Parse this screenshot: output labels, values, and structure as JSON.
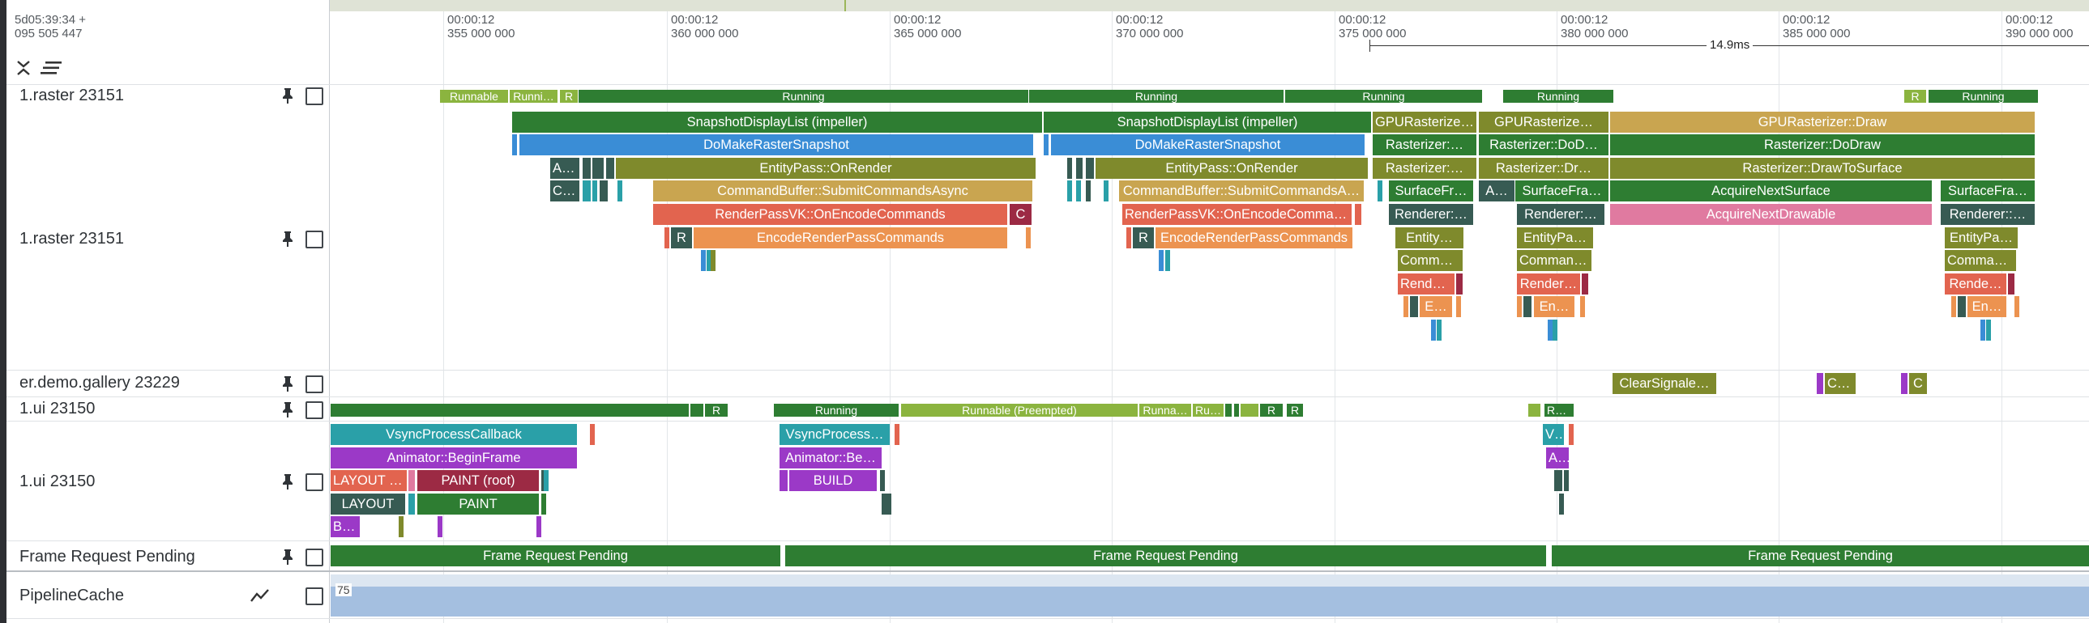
{
  "timeline": {
    "offset": "5d05:39:34 +\n095 505 447",
    "ticks": [
      {
        "time": "00:00:12",
        "ns": "355 000 000"
      },
      {
        "time": "00:00:12",
        "ns": "360 000 000"
      },
      {
        "time": "00:00:12",
        "ns": "365 000 000"
      },
      {
        "time": "00:00:12",
        "ns": "370 000 000"
      },
      {
        "time": "00:00:12",
        "ns": "375 000 000"
      },
      {
        "time": "00:00:12",
        "ns": "380 000 000"
      },
      {
        "time": "00:00:12",
        "ns": "385 000 000"
      },
      {
        "time": "00:00:12",
        "ns": "390 000 000"
      }
    ],
    "measurement": "14.9ms"
  },
  "tracks": [
    {
      "label": "1.raster 23151",
      "type": "thread-state"
    },
    {
      "label": "1.raster 23151",
      "type": "slices"
    },
    {
      "label": "er.demo.gallery 23229",
      "type": "slices"
    },
    {
      "label": "1.ui 23150",
      "type": "thread-state"
    },
    {
      "label": "1.ui 23150",
      "type": "slices"
    },
    {
      "label": "Frame Request Pending",
      "type": "slices"
    },
    {
      "label": "PipelineCache",
      "type": "counter"
    }
  ],
  "counter": {
    "max_label": "75"
  },
  "colors": {
    "running": "#2e7d32",
    "runnable": "#8bb43f",
    "teal": "#2aa0a8",
    "blue": "#3a8dd6",
    "olive": "#7f8a2c",
    "gold": "#c9a550",
    "red": "#e2644f",
    "orange": "#ec9350",
    "pink": "#e07aa0",
    "purple": "#9b39c7",
    "maroon": "#9c2a44",
    "dark": "#375b53"
  },
  "labels": {
    "runnable": "Runnable",
    "running": "Running",
    "runni": "Runni…",
    "r": "R",
    "ru": "Ru…",
    "runna": "Runna…",
    "runnable_preempted": "Runnable (Preempted)",
    "snapshot": "SnapshotDisplayList (impeller)",
    "domake": "DoMakeRasterSnapshot",
    "entitypass": "EntityPass::OnRender",
    "submit": "CommandBuffer::SubmitCommandsAsync",
    "submit_trunc": "CommandBuffer::SubmitCommandsA…",
    "renderpass": "RenderPassVK::OnEncodeCommands",
    "renderpass_trunc": "RenderPassVK::OnEncodeComman…",
    "encode": "EncodeRenderPassCommands",
    "c": "C",
    "al": "Al…",
    "cr": "Cr…",
    "gpurast": "GPURasterize…",
    "gpudraw": "GPURasterizer::Draw",
    "rast": "Rasterizer:…",
    "rastdod": "Rasterizer::DoD…",
    "rastdodraw": "Rasterizer::DoDraw",
    "rastdr": "Rasterizer::Dr…",
    "rastdts": "Rasterizer::DrawToSurface",
    "surfacefr": "SurfaceFr…",
    "surfacefra": "SurfaceFra…",
    "acquiresurface": "AcquireNextSurface",
    "acquiredrawable": "AcquireNextDrawable",
    "renderer": "Renderer:…",
    "renderer2": "Renderer::…",
    "entity": "Entity…",
    "entitypa": "EntityPa…",
    "comman": "Comman…",
    "commandb": "CommandB…",
    "rende": "Rende…",
    "render": "Render…",
    "e": "E…",
    "en": "En…",
    "a": "A…",
    "clearsignale": "ClearSignale…",
    "cl": "Cl…",
    "vsync": "VsyncProcessCallback",
    "vsync_trunc": "VsyncProcess…",
    "v": "V…",
    "animator": "Animator::BeginFrame",
    "animator_trunc": "Animator::Be…",
    "layout_trunc": "LAYOUT (…",
    "layout": "LAYOUT",
    "paintroot": "PAINT (root)",
    "paint": "PAINT",
    "build": "BUILD",
    "bu": "BU…",
    "frp": "Frame Request Pending"
  }
}
